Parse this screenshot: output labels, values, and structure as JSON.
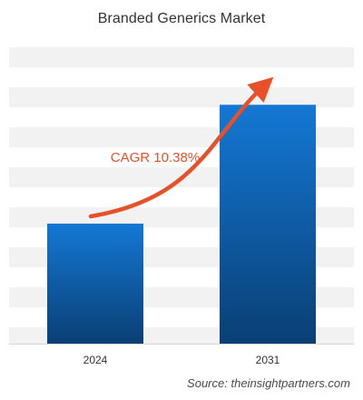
{
  "chart_data": {
    "type": "bar",
    "title": "Branded Generics Market",
    "categories": [
      "2024",
      "2031"
    ],
    "values": [
      1.0,
      1.99
    ],
    "ylim": [
      0,
      2.56
    ],
    "grid": true,
    "annotation": "CAGR 10.38%",
    "colors": {
      "bar_top": "#1478d4",
      "bar_bottom": "#0a3f74",
      "arrow": "#e8502a",
      "annotation_text": "#e8502a",
      "grid_band": "#f2f2f2"
    }
  },
  "source": {
    "label": "Source:",
    "text": "theinsightpartners.com"
  }
}
